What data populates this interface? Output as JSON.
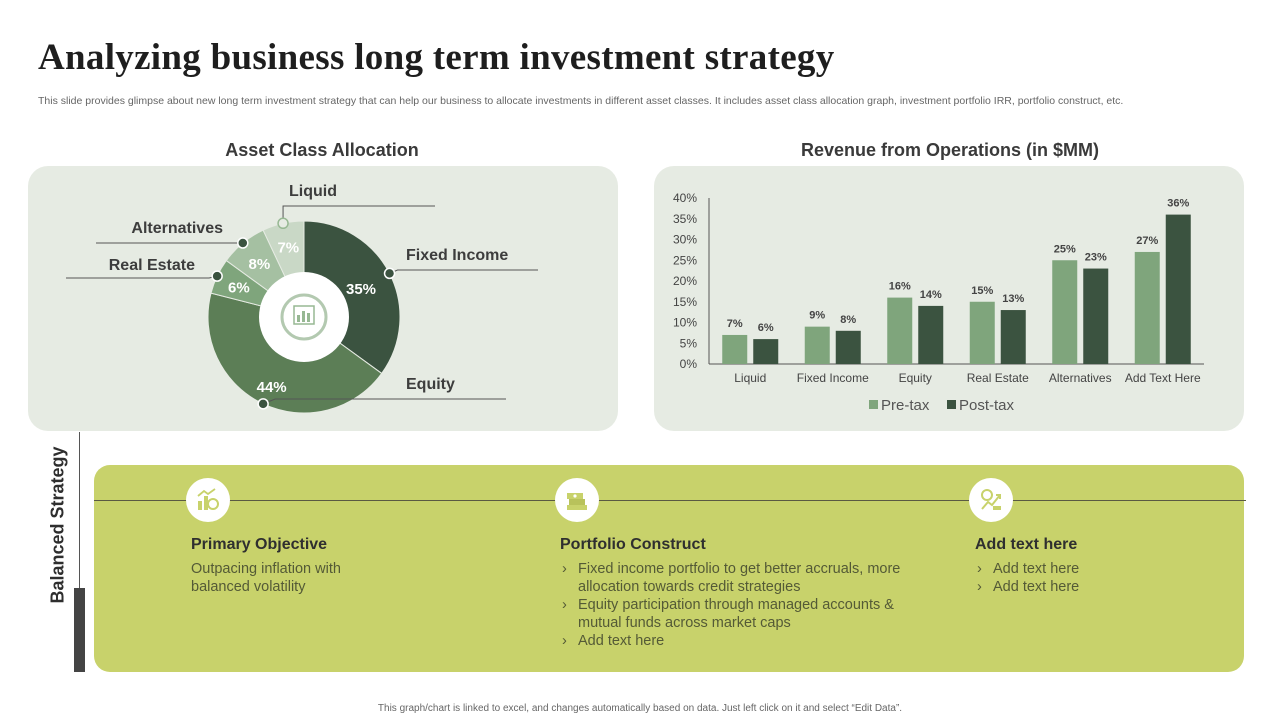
{
  "header": {
    "title": "Analyzing business long term investment strategy",
    "subtitle": "This slide provides glimpse about new long term investment strategy that can help our business to allocate investments in different asset classes. It includes asset class allocation graph, investment portfolio IRR, portfolio construct, etc."
  },
  "colors": {
    "dark_green": "#3b5340",
    "mid_green": "#5c7e56",
    "light_green": "#7fa57c",
    "pale_green_1": "#97b893",
    "pale_green_2": "#b3c9b0",
    "pale_green_3": "#c9d8c6",
    "olive": "#c8d26b",
    "panel": "#e6ebe3"
  },
  "chart_data": [
    {
      "type": "pie",
      "title": "Asset Class Allocation",
      "labels": [
        "Fixed Income",
        "Equity",
        "Real Estate",
        "Alternatives",
        "Liquid"
      ],
      "values": [
        35,
        44,
        6,
        8,
        7
      ],
      "data_labels": [
        "35%",
        "44%",
        "6%",
        "8%",
        "7%"
      ],
      "colors": [
        "#3b5340",
        "#5c7e56",
        "#7fa57c",
        "#a5c0a2",
        "#c9d8c6"
      ],
      "donut": true
    },
    {
      "type": "bar",
      "title": "Revenue from Operations (in $MM)",
      "categories": [
        "Liquid",
        "Fixed Income",
        "Equity",
        "Real Estate",
        "Alternatives",
        "Add Text Here"
      ],
      "series": [
        {
          "name": "Pre-tax",
          "values": [
            7,
            9,
            16,
            15,
            25,
            27
          ],
          "color": "#7fa57c"
        },
        {
          "name": "Post-tax",
          "values": [
            6,
            8,
            14,
            13,
            23,
            36
          ],
          "color": "#3b5340"
        }
      ],
      "yticks": [
        "0%",
        "5%",
        "10%",
        "15%",
        "20%",
        "25%",
        "30%",
        "35%",
        "40%"
      ],
      "ylim": [
        0,
        40
      ],
      "legend": "bottom"
    }
  ],
  "strategy": {
    "label": "Balanced Strategy",
    "columns": [
      {
        "icon": "chart-coins-icon",
        "title": "Primary Objective",
        "text": "Outpacing inflation with balanced volatility"
      },
      {
        "icon": "cash-stack-icon",
        "title": "Portfolio Construct",
        "bullets": [
          "Fixed income portfolio to get better accruals, more allocation towards credit strategies",
          "Equity participation through managed accounts & mutual funds across market caps",
          "Add text here"
        ]
      },
      {
        "icon": "money-growth-icon",
        "title": "Add text here",
        "bullets": [
          "Add text here",
          "Add text here"
        ]
      }
    ]
  },
  "footer": "This graph/chart is linked to excel, and changes automatically based on data. Just left click on it and select “Edit Data”."
}
